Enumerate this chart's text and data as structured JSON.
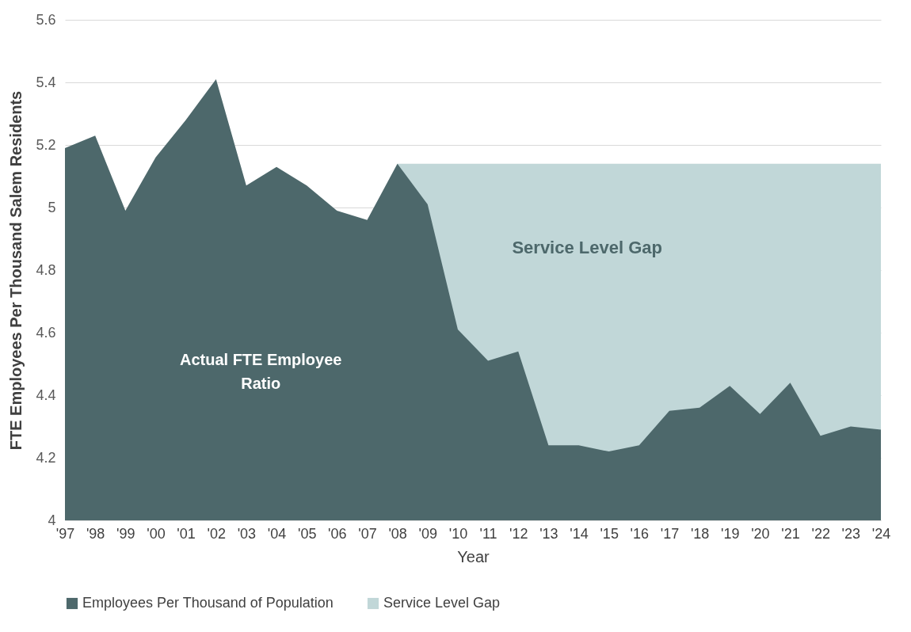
{
  "chart_data": {
    "type": "area",
    "xlabel": "Year",
    "ylabel": "FTE Employees Per Thousand Salem Residents",
    "categories": [
      "'97",
      "'98",
      "'99",
      "'00",
      "'01",
      "'02",
      "'03",
      "'04",
      "'05",
      "'06",
      "'07",
      "'08",
      "'09",
      "'10",
      "'11",
      "'12",
      "'13",
      "'14",
      "'15",
      "'16",
      "'17",
      "'18",
      "'19",
      "'20",
      "'21",
      "'22",
      "'23",
      "'24"
    ],
    "series": [
      {
        "name": "Employees Per Thousand of Population",
        "color": "#4d686b",
        "values": [
          5.19,
          5.23,
          4.99,
          5.16,
          5.28,
          5.41,
          5.07,
          5.13,
          5.07,
          4.99,
          4.96,
          5.14,
          5.01,
          4.61,
          4.51,
          4.54,
          4.24,
          4.24,
          4.22,
          4.24,
          4.35,
          4.36,
          4.43,
          4.34,
          4.44,
          4.27,
          4.3,
          4.29
        ]
      },
      {
        "name": "Service Level Gap",
        "color": "#c1d7d8",
        "values": [
          null,
          null,
          null,
          null,
          null,
          null,
          null,
          null,
          null,
          null,
          null,
          5.14,
          5.14,
          5.14,
          5.14,
          5.14,
          5.14,
          5.14,
          5.14,
          5.14,
          5.14,
          5.14,
          5.14,
          5.14,
          5.14,
          5.14,
          5.14,
          5.14
        ]
      }
    ],
    "ylim": [
      4,
      5.6
    ],
    "yticks": [
      4,
      4.2,
      4.4,
      4.6,
      4.8,
      5,
      5.2,
      5.4,
      5.6
    ],
    "grid": "y",
    "legend": "bottom",
    "annotations": [
      "Service Level Gap",
      "Actual FTE Employee Ratio"
    ]
  }
}
